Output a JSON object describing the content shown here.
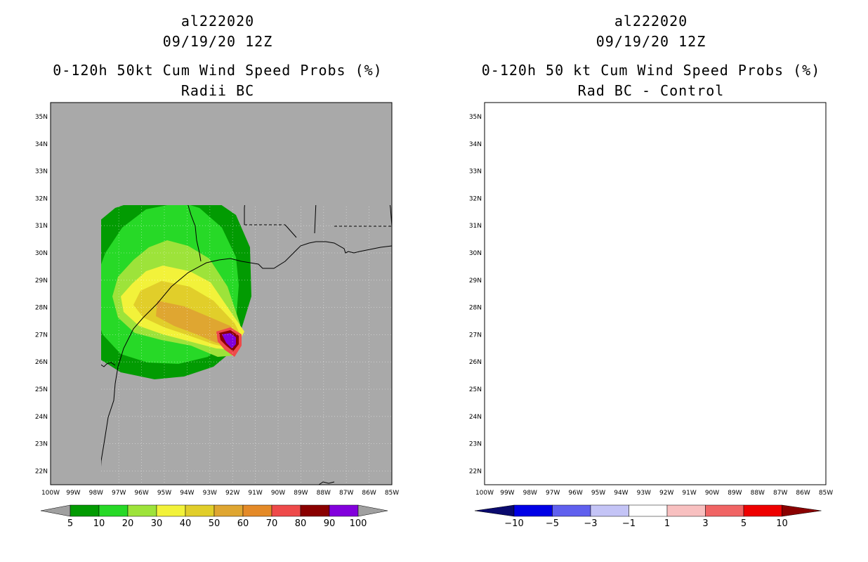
{
  "left_panel": {
    "storm_id": "al222020",
    "datetime": "09/19/20 12Z",
    "title": "0-120h 50kt Cum Wind Speed Probs (%)",
    "subtitle": "Radii BC",
    "background_color": "#a9a9a9",
    "colorbar": {
      "colors": [
        "#a0a0a0",
        "#029b02",
        "#27d927",
        "#9de33a",
        "#f2f23a",
        "#e1ce2a",
        "#dfa631",
        "#e48a28",
        "#ee4a4a",
        "#8a0000",
        "#8200dc",
        "#a0a0a0"
      ],
      "labels": [
        "5",
        "10",
        "20",
        "30",
        "40",
        "50",
        "60",
        "70",
        "80",
        "90",
        "100"
      ]
    }
  },
  "right_panel": {
    "storm_id": "al222020",
    "datetime": "09/19/20 12Z",
    "title": "0-120h 50 kt Cum Wind Speed Probs (%)",
    "subtitle": "Rad BC - Control",
    "colorbar": {
      "colors": [
        "#0a0a6e",
        "#0000e6",
        "#6060ee",
        "#c4c4f6",
        "#ffffff",
        "#f8c0c0",
        "#f06464",
        "#ee0000",
        "#8a0000"
      ],
      "labels": [
        "-10",
        "-5",
        "-3",
        "-1",
        "1",
        "3",
        "5",
        "10"
      ]
    }
  },
  "axes": {
    "lat_labels": [
      "35N",
      "34N",
      "33N",
      "32N",
      "31N",
      "30N",
      "29N",
      "28N",
      "27N",
      "26N",
      "25N",
      "24N",
      "23N",
      "22N"
    ],
    "lon_labels": [
      "100W",
      "99W",
      "98W",
      "97W",
      "96W",
      "95W",
      "94W",
      "93W",
      "92W",
      "91W",
      "90W",
      "89W",
      "88W",
      "87W",
      "86W",
      "85W"
    ]
  }
}
